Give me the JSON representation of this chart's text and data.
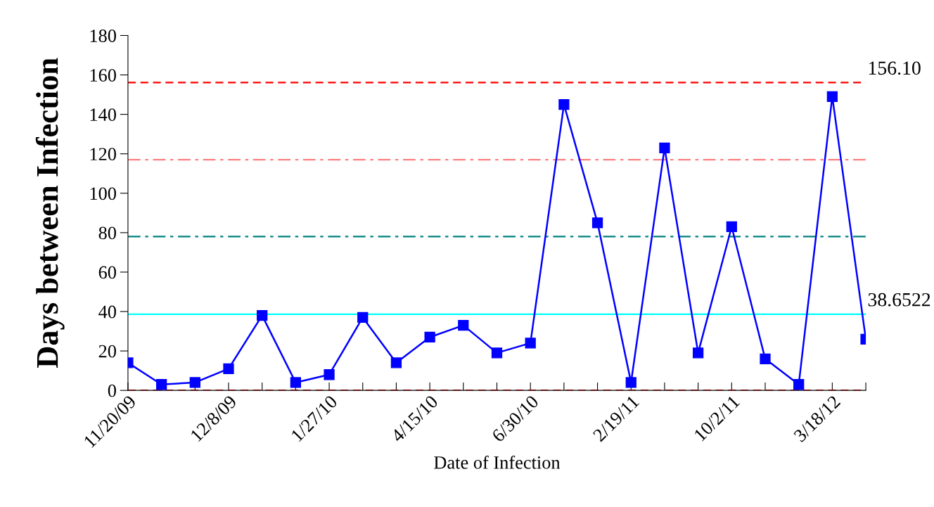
{
  "chart_data": {
    "type": "line",
    "xlabel": "Date of Infection",
    "ylabel": "Days between Infection",
    "categories": [
      "11/20/09",
      null,
      null,
      "12/8/09",
      null,
      null,
      "1/27/10",
      null,
      null,
      "4/15/10",
      null,
      null,
      "6/30/10",
      null,
      null,
      "2/19/11",
      null,
      null,
      "10/2/11",
      null,
      null,
      "3/18/12",
      null
    ],
    "series": [
      {
        "color": "#0000ff",
        "values": [
          14,
          3,
          4,
          11,
          38,
          4,
          8,
          37,
          14,
          27,
          33,
          19,
          24,
          145,
          85,
          4,
          123,
          19,
          83,
          16,
          3,
          149,
          26
        ]
      }
    ],
    "marker": "square",
    "line_style": "solid",
    "ylim": [
      0,
      180
    ],
    "yticks": [
      0,
      20,
      40,
      60,
      80,
      100,
      120,
      140,
      160,
      180
    ],
    "grid": false,
    "legend": false,
    "ref_lines": [
      {
        "axis": "y",
        "value": 156.1,
        "label": "156.10",
        "color": "#ff0000",
        "line_style": "dashed"
      },
      {
        "axis": "y",
        "value": 117,
        "label": null,
        "color": "#ff8080",
        "line_style": "dashdot"
      },
      {
        "axis": "y",
        "value": 78,
        "label": null,
        "color": "#008080",
        "line_style": "dashdot"
      },
      {
        "axis": "y",
        "value": 38.6522,
        "label": "38.6522",
        "color": "#00ffff",
        "line_style": "solid"
      },
      {
        "axis": "y",
        "value": 0,
        "label": null,
        "color": "#ff0000",
        "line_style": "dashed"
      }
    ]
  }
}
